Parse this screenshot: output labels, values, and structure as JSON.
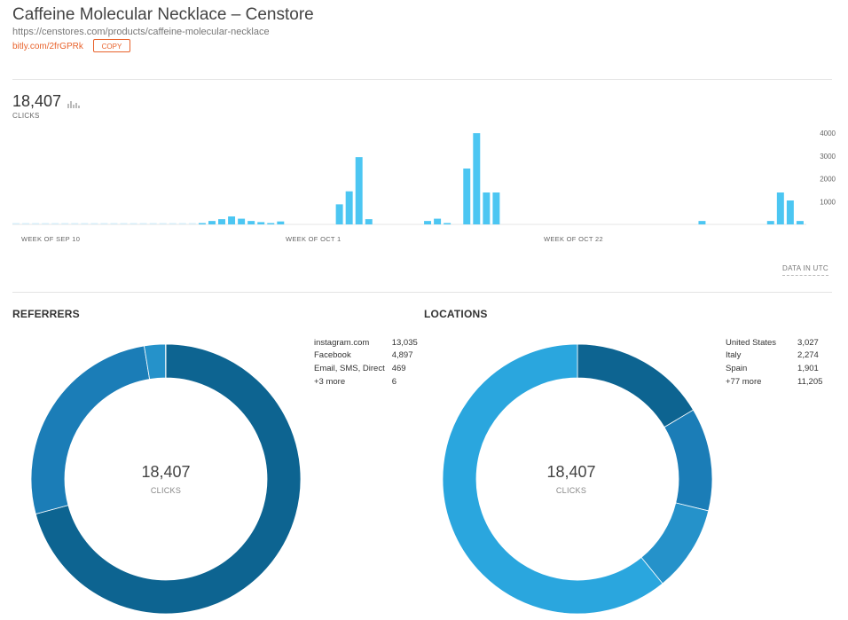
{
  "header": {
    "title": "Caffeine Molecular Necklace – Censtore",
    "long_url": "https://censtores.com/products/caffeine-molecular-necklace",
    "short_url": "bitly.com/2frGPRk",
    "copy_label": "COPY"
  },
  "summary": {
    "total_clicks": "18,407",
    "clicks_label": "CLICKS",
    "timezone_label": "DATA IN UTC"
  },
  "chart_data": [
    {
      "type": "bar",
      "x_tick_labels": [
        "WEEK OF SEP 10",
        "WEEK OF OCT 1",
        "WEEK OF OCT 22"
      ],
      "yticks": [
        "1000",
        "2000",
        "3000",
        "4000"
      ],
      "ylim": [
        0,
        4200
      ],
      "grid": false,
      "values": [
        10,
        10,
        10,
        10,
        10,
        10,
        10,
        10,
        10,
        10,
        10,
        10,
        10,
        10,
        10,
        10,
        10,
        10,
        10,
        40,
        150,
        230,
        350,
        250,
        150,
        100,
        50,
        130,
        0,
        0,
        0,
        0,
        0,
        880,
        1450,
        2950,
        230,
        0,
        0,
        0,
        0,
        0,
        150,
        250,
        60,
        0,
        2450,
        4000,
        1400,
        1400,
        0,
        0,
        0,
        0,
        0,
        0,
        0,
        0,
        0,
        0,
        0,
        0,
        0,
        0,
        0,
        0,
        0,
        0,
        0,
        0,
        150,
        0,
        0,
        0,
        0,
        0,
        0,
        150,
        1400,
        1050,
        150
      ]
    },
    {
      "type": "pie",
      "title": "REFERRERS",
      "labels": [
        "instagram.com",
        "Facebook",
        "Email, SMS, Direct",
        "+3 more"
      ],
      "values": [
        13035,
        4897,
        469,
        6
      ],
      "colors": [
        "#0d6491",
        "#1b7db7",
        "#2592ca",
        "#2aa6de"
      ]
    },
    {
      "type": "pie",
      "title": "LOCATIONS",
      "labels": [
        "United States",
        "Italy",
        "Spain",
        "+77 more"
      ],
      "values": [
        3027,
        2274,
        1901,
        11205
      ],
      "colors": [
        "#0d6491",
        "#1b7db7",
        "#2592ca",
        "#2aa6de"
      ]
    }
  ],
  "referrers": {
    "title": "REFERRERS",
    "rows": [
      {
        "name": "instagram.com",
        "value": "13,035"
      },
      {
        "name": "Facebook",
        "value": "4,897"
      },
      {
        "name": "Email, SMS, Direct",
        "value": "469"
      },
      {
        "name": "+3 more",
        "value": "6"
      }
    ],
    "center_value": "18,407",
    "center_label": "CLICKS"
  },
  "locations": {
    "title": "LOCATIONS",
    "rows": [
      {
        "name": "United States",
        "value": "3,027"
      },
      {
        "name": "Italy",
        "value": "2,274"
      },
      {
        "name": "Spain",
        "value": "1,901"
      },
      {
        "name": "+77 more",
        "value": "11,205"
      }
    ],
    "center_value": "18,407",
    "center_label": "CLICKS"
  },
  "colors": {
    "accent": "#e8622b",
    "bar": "#4cc6f2"
  },
  "icons": {
    "mini_chart": "bar-chart-icon"
  }
}
